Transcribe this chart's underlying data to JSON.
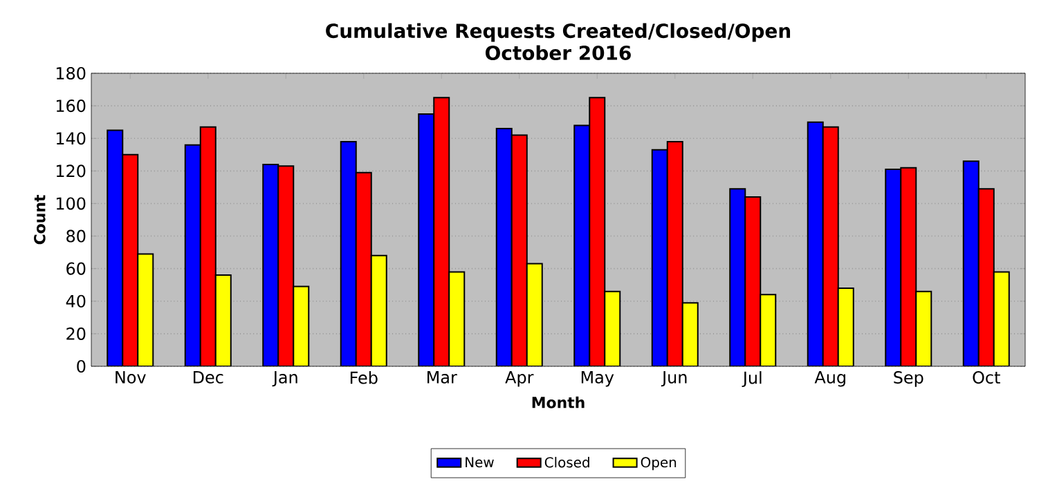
{
  "chart_data": {
    "type": "bar",
    "title": "Cumulative Requests Created/Closed/Open",
    "subtitle": "October 2016",
    "xlabel": "Month",
    "ylabel": "Count",
    "categories": [
      "Nov",
      "Dec",
      "Jan",
      "Feb",
      "Mar",
      "Apr",
      "May",
      "Jun",
      "Jul",
      "Aug",
      "Sep",
      "Oct"
    ],
    "series": [
      {
        "name": "New",
        "color": "#0000ff",
        "values": [
          145,
          136,
          124,
          138,
          155,
          146,
          148,
          133,
          109,
          150,
          121,
          126
        ]
      },
      {
        "name": "Closed",
        "color": "#ff0000",
        "values": [
          130,
          147,
          123,
          119,
          165,
          142,
          165,
          138,
          104,
          147,
          122,
          109
        ]
      },
      {
        "name": "Open",
        "color": "#ffff00",
        "values": [
          69,
          56,
          49,
          68,
          58,
          63,
          46,
          39,
          44,
          48,
          46,
          58
        ]
      }
    ],
    "ylim": [
      0,
      180
    ],
    "yticks": [
      0,
      20,
      40,
      60,
      80,
      100,
      120,
      140,
      160,
      180
    ],
    "grid": "y",
    "legend": "bottom"
  }
}
